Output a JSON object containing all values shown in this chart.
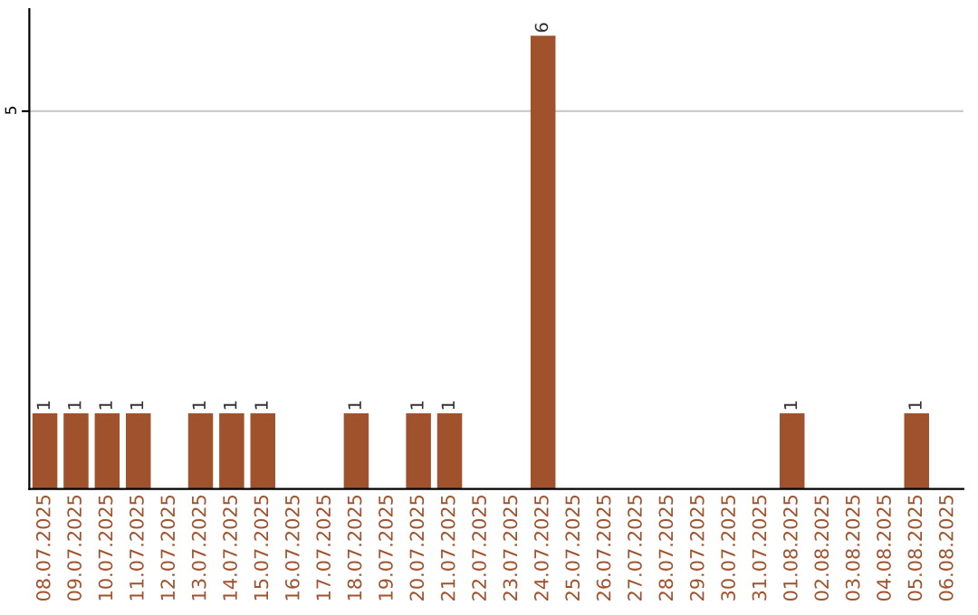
{
  "chart_data": {
    "type": "bar",
    "categories": [
      "08.07.2025",
      "09.07.2025",
      "10.07.2025",
      "11.07.2025",
      "12.07.2025",
      "13.07.2025",
      "14.07.2025",
      "15.07.2025",
      "16.07.2025",
      "17.07.2025",
      "18.07.2025",
      "19.07.2025",
      "20.07.2025",
      "21.07.2025",
      "22.07.2025",
      "23.07.2025",
      "24.07.2025",
      "25.07.2025",
      "26.07.2025",
      "27.07.2025",
      "28.07.2025",
      "29.07.2025",
      "30.07.2025",
      "31.07.2025",
      "01.08.2025",
      "02.08.2025",
      "03.08.2025",
      "04.08.2025",
      "05.08.2025",
      "06.08.2025"
    ],
    "values": [
      1,
      1,
      1,
      1,
      0,
      1,
      1,
      1,
      0,
      0,
      1,
      0,
      1,
      1,
      0,
      0,
      6,
      0,
      0,
      0,
      0,
      0,
      0,
      0,
      1,
      0,
      0,
      0,
      1,
      0
    ],
    "value_labels": [
      "1",
      "1",
      "1",
      "1",
      null,
      "1",
      "1",
      "1",
      null,
      null,
      "1",
      null,
      "1",
      "1",
      null,
      null,
      "6",
      null,
      null,
      null,
      null,
      null,
      null,
      null,
      "1",
      null,
      null,
      null,
      "1",
      null
    ],
    "color": "#a0522d",
    "ylim": [
      0,
      6.35
    ],
    "yticks": [
      5
    ],
    "grid": "y"
  }
}
